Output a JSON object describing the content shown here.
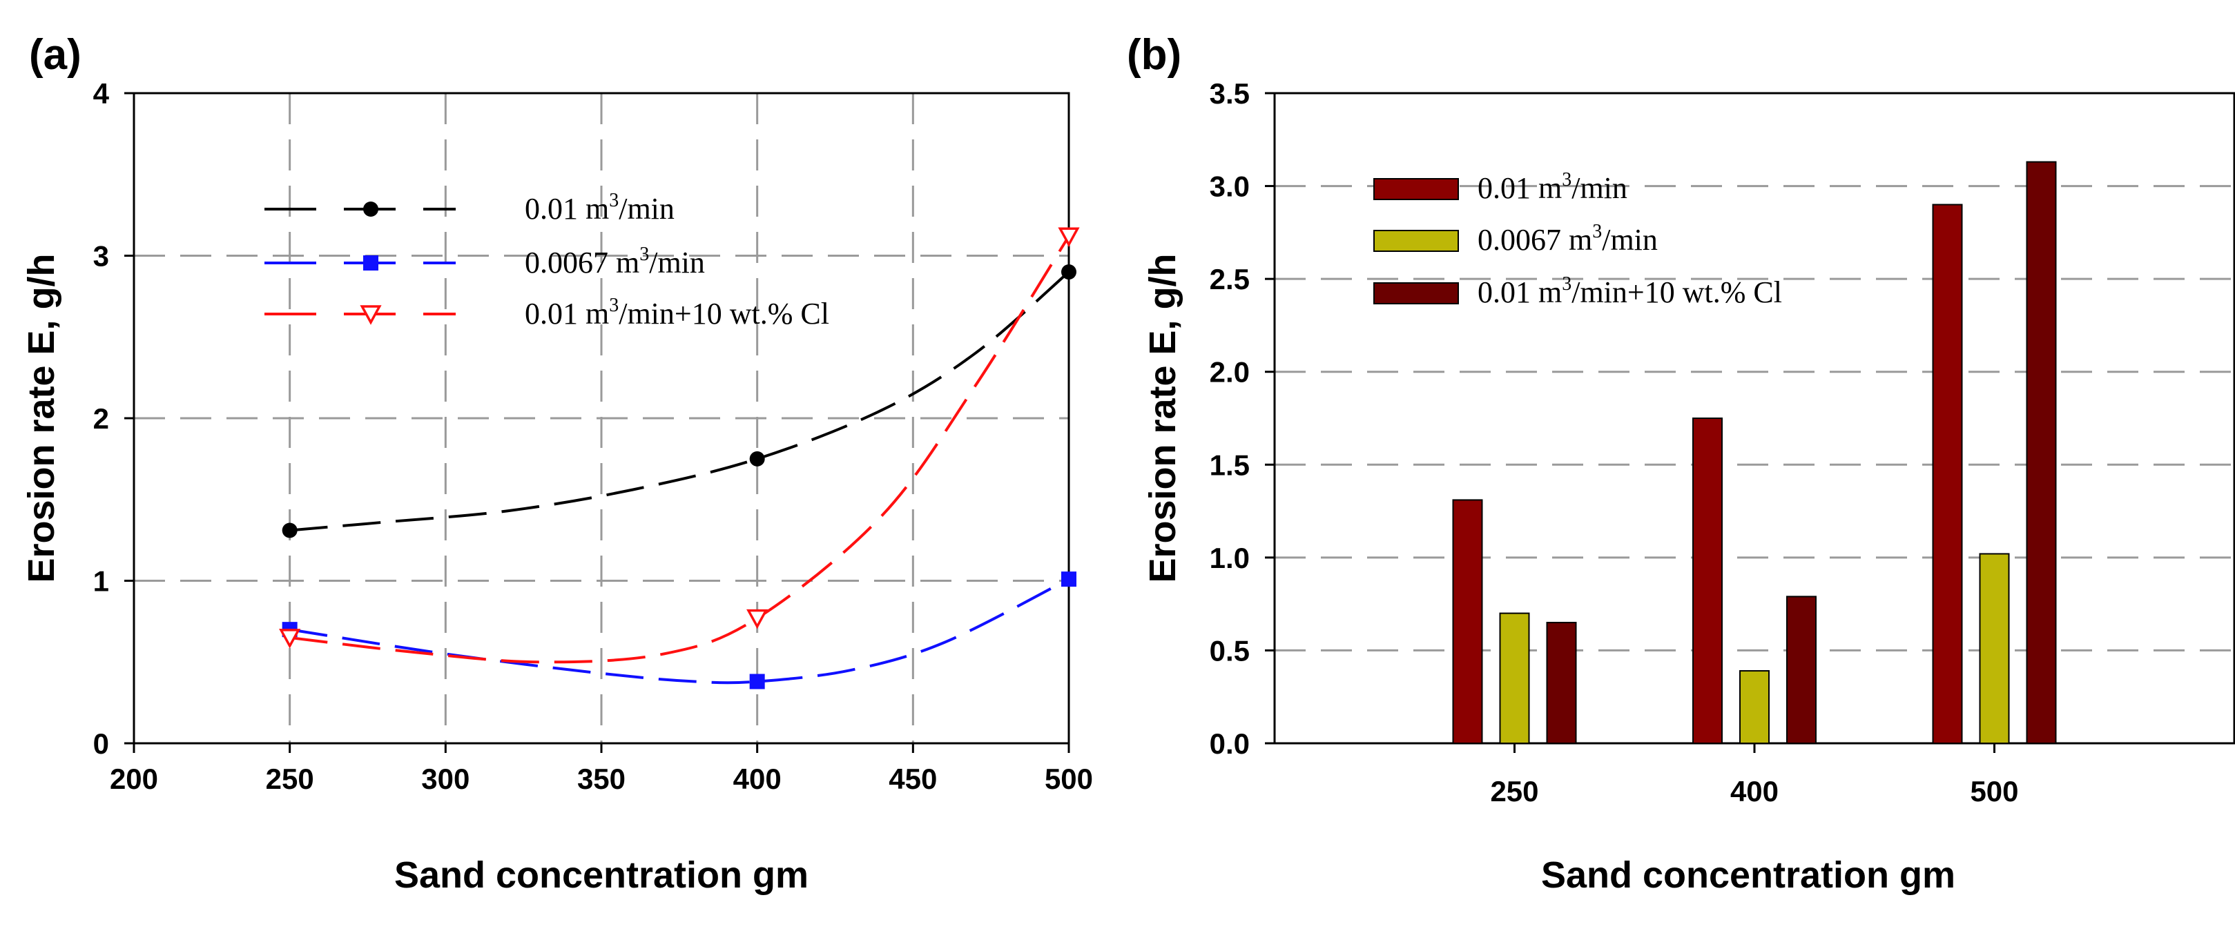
{
  "chart_data": [
    {
      "panel": "(a)",
      "type": "line",
      "xlabel": "Sand concentration gm",
      "ylabel": "Erosion rate E,  g/h",
      "xlim": [
        200,
        500
      ],
      "ylim": [
        0,
        4
      ],
      "xticks": [
        "200",
        "250",
        "300",
        "350",
        "400",
        "450",
        "500"
      ],
      "yticks": [
        "0",
        "1",
        "2",
        "3",
        "4"
      ],
      "grid": true,
      "legend_position": "top-left",
      "series": [
        {
          "name": "0.01 m3/min",
          "label_main": "0.01 m",
          "label_sup": "3",
          "label_tail": "/min",
          "color": "#000000",
          "marker": "filled-circle",
          "x": [
            250,
            400,
            500
          ],
          "y": [
            1.31,
            1.75,
            2.9
          ],
          "curve": [
            [
              250,
              1.31
            ],
            [
              280,
              1.36
            ],
            [
              320,
              1.43
            ],
            [
              360,
              1.56
            ],
            [
              400,
              1.75
            ],
            [
              440,
              2.05
            ],
            [
              470,
              2.4
            ],
            [
              500,
              2.9
            ]
          ]
        },
        {
          "name": "0.0067 m3/min",
          "label_main": " 0.0067 m",
          "label_sup": "3",
          "label_tail": "/min",
          "color": "#1010ff",
          "marker": "filled-square",
          "x": [
            250,
            400,
            500
          ],
          "y": [
            0.7,
            0.38,
            1.01
          ],
          "curve": [
            [
              250,
              0.7
            ],
            [
              300,
              0.55
            ],
            [
              350,
              0.43
            ],
            [
              380,
              0.38
            ],
            [
              400,
              0.38
            ],
            [
              430,
              0.45
            ],
            [
              460,
              0.62
            ],
            [
              500,
              1.01
            ]
          ]
        },
        {
          "name": "0.01 m3/min+10 wt.% Cl",
          "label_main": "0.01 m",
          "label_sup": "3",
          "label_tail": "/min+10 wt.% Cl",
          "color": "#ff1010",
          "marker": "open-triangle-down",
          "x": [
            250,
            400,
            500
          ],
          "y": [
            0.65,
            0.77,
            3.12
          ],
          "curve": [
            [
              250,
              0.65
            ],
            [
              290,
              0.56
            ],
            [
              330,
              0.5
            ],
            [
              370,
              0.55
            ],
            [
              400,
              0.77
            ],
            [
              440,
              1.4
            ],
            [
              470,
              2.2
            ],
            [
              500,
              3.12
            ]
          ]
        }
      ]
    },
    {
      "panel": "(b)",
      "type": "bar",
      "xlabel": "Sand concentration gm",
      "ylabel": "Erosion rate E,  g/h",
      "categories": [
        "250",
        "400",
        "500"
      ],
      "ylim": [
        0,
        3.5
      ],
      "yticks": [
        "0.0",
        "0.5",
        "1.0",
        "1.5",
        "2.0",
        "2.5",
        "3.0",
        "3.5"
      ],
      "grid": true,
      "legend_position": "top-left",
      "series": [
        {
          "name": "0.01 m3/min",
          "label_main": "0.01 m",
          "label_sup": "3",
          "label_tail": "/min",
          "color": "#8b0000",
          "values": [
            1.31,
            1.75,
            2.9
          ]
        },
        {
          "name": "0.0067 m3/min",
          "label_main": " 0.0067 m",
          "label_sup": "3",
          "label_tail": "/min",
          "color": "#bdb707",
          "values": [
            0.7,
            0.39,
            1.02
          ]
        },
        {
          "name": "0.01 m3/min+10 wt.% Cl",
          "label_main": "0.01 m",
          "label_sup": "3",
          "label_tail": "/min+10 wt.% Cl",
          "color": "#6b0000",
          "values": [
            0.65,
            0.79,
            3.13
          ]
        }
      ]
    }
  ]
}
